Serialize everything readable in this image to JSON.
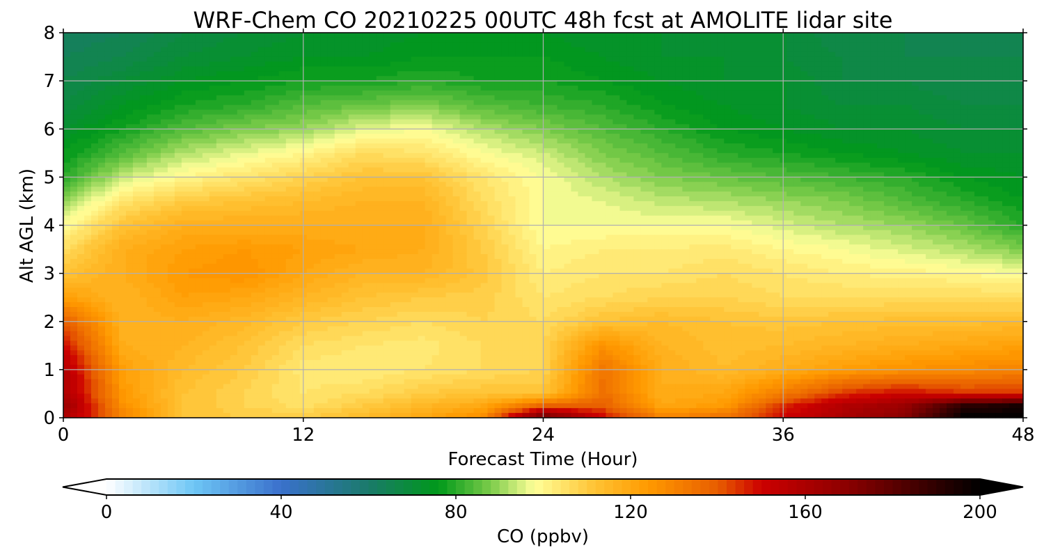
{
  "chart_data": {
    "type": "heatmap",
    "title": "WRF-Chem CO  20210225 00UTC 48h fcst at AMOLITE lidar site",
    "xlabel": "Forecast Time (Hour)",
    "ylabel": "Alt AGL (km)",
    "xlim": [
      0,
      48
    ],
    "ylim": [
      0,
      8
    ],
    "xticks": [
      0,
      12,
      24,
      36,
      48
    ],
    "yticks": [
      0,
      1,
      2,
      3,
      4,
      5,
      6,
      7,
      8
    ],
    "grid": true,
    "x": [
      0,
      3,
      6,
      9,
      12,
      15,
      18,
      21,
      24,
      27,
      30,
      33,
      36,
      39,
      42,
      45,
      48
    ],
    "y": [
      0,
      0.25,
      0.5,
      1,
      1.5,
      2,
      2.5,
      3,
      3.5,
      4,
      4.5,
      5,
      5.5,
      6,
      6.5,
      7,
      7.5,
      8
    ],
    "z": [
      [
        160,
        130,
        112,
        110,
        110,
        114,
        120,
        128,
        180,
        150,
        130,
        135,
        150,
        160,
        170,
        200,
        200
      ],
      [
        165,
        126,
        112,
        108,
        105,
        110,
        115,
        120,
        138,
        140,
        120,
        124,
        145,
        158,
        165,
        190,
        195
      ],
      [
        160,
        124,
        112,
        108,
        104,
        106,
        110,
        112,
        112,
        135,
        118,
        120,
        132,
        145,
        150,
        145,
        145
      ],
      [
        158,
        122,
        114,
        110,
        103,
        102,
        104,
        106,
        108,
        134,
        118,
        114,
        118,
        123,
        126,
        128,
        130
      ],
      [
        150,
        118,
        116,
        112,
        106,
        104,
        103,
        106,
        108,
        126,
        116,
        113,
        114,
        116,
        118,
        120,
        122
      ],
      [
        140,
        116,
        118,
        115,
        110,
        108,
        106,
        108,
        106,
        112,
        114,
        112,
        111,
        112,
        113,
        113,
        114
      ],
      [
        122,
        116,
        122,
        120,
        116,
        112,
        110,
        109,
        104,
        106,
        108,
        108,
        106,
        106,
        106,
        106,
        106
      ],
      [
        112,
        118,
        124,
        126,
        120,
        116,
        116,
        111,
        102,
        104,
        104,
        106,
        104,
        102,
        101,
        100,
        98
      ],
      [
        106,
        118,
        122,
        124,
        122,
        120,
        118,
        110,
        100,
        102,
        102,
        103,
        100,
        98,
        95,
        92,
        88
      ],
      [
        98,
        112,
        118,
        118,
        118,
        118,
        118,
        108,
        98,
        98,
        98,
        98,
        95,
        92,
        90,
        86,
        80
      ],
      [
        90,
        104,
        110,
        112,
        114,
        116,
        116,
        106,
        98,
        96,
        93,
        92,
        90,
        88,
        84,
        80,
        76
      ],
      [
        80,
        94,
        100,
        104,
        108,
        112,
        112,
        104,
        98,
        92,
        88,
        86,
        84,
        82,
        80,
        76,
        74
      ],
      [
        76,
        84,
        92,
        96,
        100,
        106,
        104,
        98,
        94,
        88,
        84,
        80,
        78,
        76,
        74,
        72,
        72
      ],
      [
        72,
        78,
        84,
        88,
        90,
        96,
        98,
        92,
        88,
        84,
        80,
        76,
        74,
        72,
        72,
        70,
        70
      ],
      [
        68,
        74,
        78,
        80,
        84,
        86,
        88,
        84,
        82,
        80,
        76,
        74,
        72,
        70,
        70,
        68,
        68
      ],
      [
        66,
        70,
        74,
        76,
        78,
        78,
        80,
        78,
        78,
        76,
        74,
        72,
        72,
        68,
        68,
        66,
        66
      ],
      [
        64,
        66,
        70,
        72,
        74,
        74,
        76,
        76,
        76,
        74,
        72,
        72,
        70,
        68,
        66,
        66,
        66
      ],
      [
        62,
        64,
        68,
        70,
        72,
        72,
        74,
        74,
        74,
        72,
        72,
        70,
        70,
        66,
        66,
        64,
        64
      ]
    ],
    "colorbar": {
      "label": "CO  (ppbv)",
      "vmin": 0,
      "vmax": 200,
      "ticks": [
        0,
        40,
        80,
        120,
        160,
        200
      ],
      "extend": "both",
      "levels": 100,
      "colors": {
        "c0": "#ffffff",
        "c20": "#6ec6f5",
        "c40": "#3a70cc",
        "c60": "#1a7a6a",
        "c76": "#00991a",
        "c88": "#7ccc4a",
        "c98": "#ffff99",
        "c112": "#ffc233",
        "c124": "#ff9a00",
        "c140": "#e85d00",
        "c150": "#cc0000",
        "c170": "#8a0000",
        "c200": "#000000"
      }
    }
  }
}
